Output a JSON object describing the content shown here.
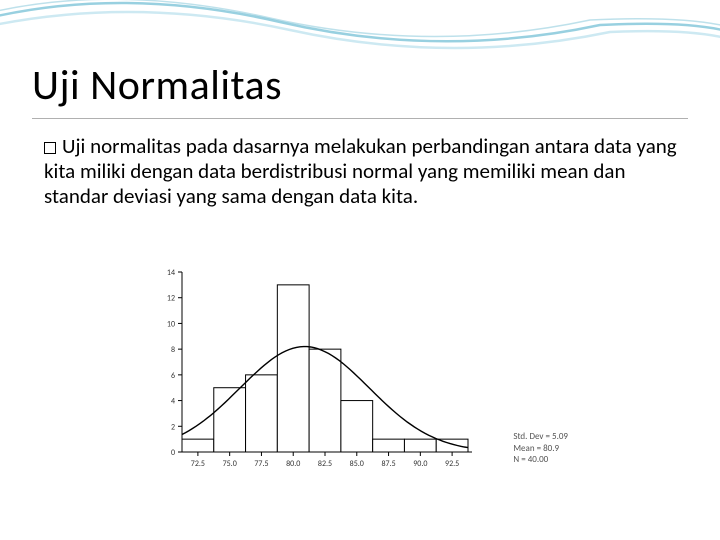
{
  "decoration": {
    "wave_color_outer": "#7ec4d8",
    "wave_color_inner": "#b8e0ec"
  },
  "title": "Uji Normalitas",
  "body": {
    "text": "Uji normalitas pada dasarnya melakukan perbandingan antara data yang kita miliki dengan data berdistribusi normal yang memiliki mean dan standar deviasi yang sama dengan data kita."
  },
  "chart": {
    "type": "histogram_with_curve",
    "x_ticks": [
      "72.5",
      "75.0",
      "77.5",
      "80.0",
      "82.5",
      "85.0",
      "87.5",
      "90.0",
      "92.5"
    ],
    "y_max": 14,
    "y_ticks": [
      0,
      2,
      4,
      6,
      8,
      10,
      12,
      14
    ],
    "bars": [
      {
        "x": 72.5,
        "height": 1
      },
      {
        "x": 75.0,
        "height": 5
      },
      {
        "x": 77.5,
        "height": 6
      },
      {
        "x": 80.0,
        "height": 13
      },
      {
        "x": 82.5,
        "height": 8
      },
      {
        "x": 85.0,
        "height": 4
      },
      {
        "x": 87.5,
        "height": 1
      },
      {
        "x": 90.0,
        "height": 1
      },
      {
        "x": 92.5,
        "height": 1
      }
    ],
    "curve": {
      "mean": 80.9,
      "std": 5.09,
      "peak_y": 8.2
    },
    "bar_fill": "#ffffff",
    "bar_stroke": "#000000",
    "curve_stroke": "#000000",
    "axis_stroke": "#000000",
    "tick_font_size": 8,
    "stats": {
      "std_dev_label": "Std. Dev = 5.09",
      "mean_label": "Mean = 80.9",
      "n_label": "N = 40.00"
    }
  }
}
